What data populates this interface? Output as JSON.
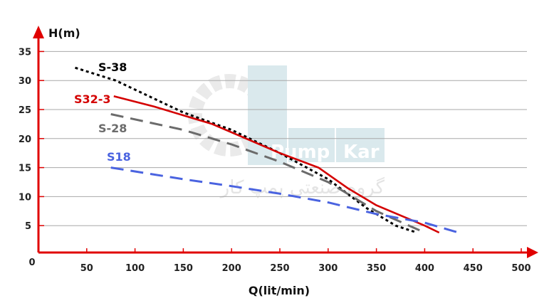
{
  "chart_data": {
    "type": "line",
    "title": "",
    "xlabel": "Q(lit/min)",
    "ylabel": "H(m)",
    "origin_label": "0",
    "xlim": [
      0,
      510
    ],
    "ylim": [
      0,
      37
    ],
    "xticks": [
      50,
      100,
      150,
      200,
      250,
      300,
      350,
      400,
      450,
      500
    ],
    "yticks": [
      5,
      10,
      15,
      20,
      25,
      30,
      35
    ],
    "grid": true,
    "series": [
      {
        "name": "S-38",
        "color": "#000000",
        "style": "dotted",
        "x": [
          38,
          80,
          150,
          200,
          250,
          300,
          340,
          370,
          392
        ],
        "y": [
          32.2,
          30,
          24.5,
          21.5,
          17.5,
          13,
          8,
          5,
          3.8
        ]
      },
      {
        "name": "S32-3",
        "color": "#d40000",
        "style": "solid",
        "x": [
          78,
          120,
          180,
          250,
          290,
          320,
          350,
          400,
          415
        ],
        "y": [
          27.3,
          25.5,
          22.5,
          17.5,
          15,
          11.5,
          8.5,
          5,
          3.8
        ]
      },
      {
        "name": "S-28",
        "color": "#6b6b6b",
        "style": "dashed",
        "x": [
          75,
          150,
          200,
          250,
          300,
          350,
          400
        ],
        "y": [
          24.2,
          21.5,
          19,
          16,
          12.5,
          7.5,
          3.8
        ]
      },
      {
        "name": "S18",
        "color": "#4a63e0",
        "style": "dashed",
        "x": [
          75,
          150,
          200,
          250,
          300,
          350,
          400,
          435
        ],
        "y": [
          15,
          13,
          11.8,
          10.5,
          9,
          7,
          5.5,
          3.8
        ]
      }
    ]
  },
  "watermark": {
    "brand_left": "Pump",
    "brand_right": "Kar",
    "persian": "گروه صنعتی پمپ کار"
  },
  "colors": {
    "axis": "#e00000",
    "grid": "#a8a8a8",
    "tick_text": "#222222"
  }
}
